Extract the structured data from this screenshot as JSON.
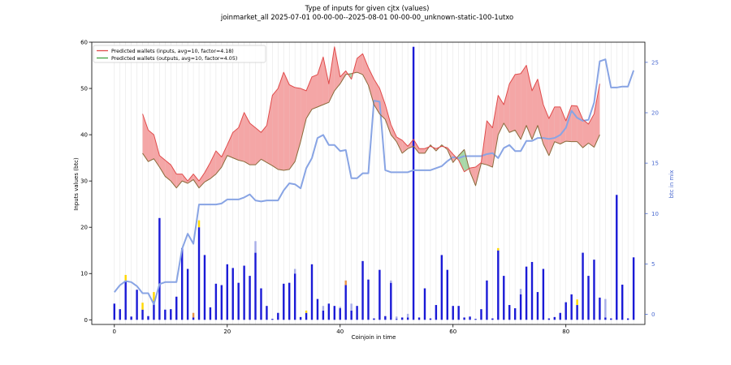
{
  "chart_data": {
    "type": "bar",
    "title": "Type of inputs for given cjtx (values)",
    "subtitle": "joinmarket_all 2025-07-01 00-00-00--2025-08-01 00-00-00_unknown-static-100-1utxo",
    "xlabel": "Coinjoin in time",
    "ylabel": "Inputs values (btc)",
    "y2label": "btc in mix",
    "xlim": [
      -4,
      94
    ],
    "ylim": [
      -1,
      60
    ],
    "y2lim": [
      -1,
      27
    ],
    "xticks": [
      0,
      20,
      40,
      60,
      80
    ],
    "yticks": [
      0,
      10,
      20,
      30,
      40,
      50,
      60
    ],
    "y2ticks": [
      0,
      5,
      10,
      15,
      20,
      25
    ],
    "grid": "vertical",
    "legend_position": "top-left",
    "legend": [
      {
        "label": "Predicted wallets (inputs, avg=10, factor=4.18)",
        "color": "#e04b4b"
      },
      {
        "label": "Predicted wallets (outputs, avg=10, factor=4.05)",
        "color": "#3fa03f"
      }
    ],
    "colors": {
      "bars": "#1a1ad6",
      "bars_light": "#a8aee8",
      "bars_yellow": "#ffd700",
      "bars_orange": "#e8954a",
      "inputs_line": "#e04b4b",
      "outputs_line": "#8a6a3a",
      "fill_red": "#f4a6a6",
      "fill_green": "#a8d8a8",
      "mix_line": "#88a4e4"
    },
    "bars": [
      {
        "x": 0,
        "value": 3.5
      },
      {
        "x": 1,
        "value": 2.3
      },
      {
        "x": 2,
        "value": 8.5,
        "cap": 1.2,
        "cap_color": "yellow"
      },
      {
        "x": 3,
        "value": 0.7
      },
      {
        "x": 4,
        "value": 6.5
      },
      {
        "x": 5,
        "value": 2.2,
        "cap": 1.5,
        "cap_color": "yellow"
      },
      {
        "x": 6,
        "value": 0.8
      },
      {
        "x": 7,
        "value": 4,
        "cap": 2,
        "cap_color": "yellow"
      },
      {
        "x": 8,
        "value": 22
      },
      {
        "x": 9,
        "value": 2.2
      },
      {
        "x": 10,
        "value": 2.3
      },
      {
        "x": 11,
        "value": 5
      },
      {
        "x": 12,
        "value": 15.5
      },
      {
        "x": 13,
        "value": 11
      },
      {
        "x": 14,
        "value": 0.5,
        "cap": 1,
        "cap_color": "orange"
      },
      {
        "x": 15,
        "value": 20,
        "cap": 1.5,
        "cap_color": "yellow"
      },
      {
        "x": 16,
        "value": 14
      },
      {
        "x": 17,
        "value": 2.7
      },
      {
        "x": 18,
        "value": 7.8
      },
      {
        "x": 19,
        "value": 7.5
      },
      {
        "x": 20,
        "value": 12
      },
      {
        "x": 21,
        "value": 11.2
      },
      {
        "x": 22,
        "value": 8
      },
      {
        "x": 23,
        "value": 11.7
      },
      {
        "x": 24,
        "value": 9.5
      },
      {
        "x": 25,
        "value": 14.5,
        "cap": 2.5,
        "cap_color": "light"
      },
      {
        "x": 26,
        "value": 6.8
      },
      {
        "x": 27,
        "value": 3
      },
      {
        "x": 28,
        "value": 0.2
      },
      {
        "x": 29,
        "value": 1.5
      },
      {
        "x": 30,
        "value": 7.8
      },
      {
        "x": 31,
        "value": 8
      },
      {
        "x": 32,
        "value": 10,
        "cap": 1,
        "cap_color": "light"
      },
      {
        "x": 33,
        "value": 0.6
      },
      {
        "x": 34,
        "value": 1.5,
        "cap": 0.5,
        "cap_color": "yellow"
      },
      {
        "x": 35,
        "value": 12
      },
      {
        "x": 36,
        "value": 4.5
      },
      {
        "x": 37,
        "value": 2,
        "cap": 1,
        "cap_color": "light"
      },
      {
        "x": 38,
        "value": 3.5
      },
      {
        "x": 39,
        "value": 3
      },
      {
        "x": 40,
        "value": 2.5,
        "cap": 0.3,
        "cap_color": "light"
      },
      {
        "x": 41,
        "value": 7.5,
        "cap": 1,
        "cap_color": "orange"
      },
      {
        "x": 42,
        "value": 2,
        "cap": 1.5,
        "cap_color": "light"
      },
      {
        "x": 43,
        "value": 3
      },
      {
        "x": 44,
        "value": 12.7
      },
      {
        "x": 45,
        "value": 8.7
      },
      {
        "x": 46,
        "value": 0.3
      },
      {
        "x": 47,
        "value": 10.8
      },
      {
        "x": 48,
        "value": 0.8
      },
      {
        "x": 49,
        "value": 8,
        "cap": 0.5,
        "cap_color": "light"
      },
      {
        "x": 50,
        "value": 0.2,
        "cap": 0.5,
        "cap_color": "light"
      },
      {
        "x": 51,
        "value": 0.5
      },
      {
        "x": 52,
        "value": 0.5,
        "cap": 0.8,
        "cap_color": "light"
      },
      {
        "x": 53,
        "value": 59
      },
      {
        "x": 54,
        "value": 0.5
      },
      {
        "x": 55,
        "value": 6.8
      },
      {
        "x": 56,
        "value": 0.3
      },
      {
        "x": 57,
        "value": 3.2
      },
      {
        "x": 58,
        "value": 14
      },
      {
        "x": 59,
        "value": 10.8
      },
      {
        "x": 60,
        "value": 3
      },
      {
        "x": 61,
        "value": 3
      },
      {
        "x": 62,
        "value": 0.5
      },
      {
        "x": 63,
        "value": 0.7
      },
      {
        "x": 64,
        "value": 0.2
      },
      {
        "x": 65,
        "value": 2.3
      },
      {
        "x": 66,
        "value": 8.5
      },
      {
        "x": 67,
        "value": 0.3
      },
      {
        "x": 68,
        "value": 15,
        "cap": 0.5,
        "cap_color": "yellow"
      },
      {
        "x": 69,
        "value": 9.5
      },
      {
        "x": 70,
        "value": 3.2
      },
      {
        "x": 71,
        "value": 2.5
      },
      {
        "x": 72,
        "value": 5.5,
        "cap": 1.2,
        "cap_color": "light"
      },
      {
        "x": 73,
        "value": 11.5
      },
      {
        "x": 74,
        "value": 12.5
      },
      {
        "x": 75,
        "value": 6
      },
      {
        "x": 76,
        "value": 11
      },
      {
        "x": 77,
        "value": 0.3
      },
      {
        "x": 78,
        "value": 0.6
      },
      {
        "x": 79,
        "value": 1.5
      },
      {
        "x": 80,
        "value": 3.8
      },
      {
        "x": 81,
        "value": 5.5
      },
      {
        "x": 82,
        "value": 3.2,
        "cap": 1.2,
        "cap_color": "yellow"
      },
      {
        "x": 83,
        "value": 14.5
      },
      {
        "x": 84,
        "value": 9.5
      },
      {
        "x": 85,
        "value": 13
      },
      {
        "x": 86,
        "value": 4.8
      },
      {
        "x": 87,
        "value": 0.5,
        "cap": 4,
        "cap_color": "light"
      },
      {
        "x": 88,
        "value": 0.3
      },
      {
        "x": 89,
        "value": 27
      },
      {
        "x": 90,
        "value": 7.6
      },
      {
        "x": 91,
        "value": 0.3
      },
      {
        "x": 92,
        "value": 13.5
      }
    ],
    "series": [
      {
        "name": "Predicted wallets (inputs, avg=10, factor=4.18)",
        "axis": "left",
        "x": [
          5,
          6,
          7,
          8,
          9,
          10,
          11,
          12,
          13,
          14,
          15,
          16,
          17,
          18,
          19,
          20,
          21,
          22,
          23,
          24,
          25,
          26,
          27,
          28,
          29,
          30,
          31,
          32,
          33,
          34,
          35,
          36,
          37,
          38,
          39,
          40,
          41,
          42,
          43,
          44,
          45,
          46,
          47,
          48,
          49,
          50,
          51,
          52,
          53,
          54,
          55,
          56,
          57,
          58,
          59,
          60,
          61,
          62,
          63,
          64,
          65,
          66,
          67,
          68,
          69,
          70,
          71,
          72,
          73,
          74,
          75,
          76,
          77,
          78,
          79,
          80,
          81,
          82,
          83,
          84,
          85,
          86
        ],
        "values": [
          44.5,
          41,
          40,
          35.5,
          34.5,
          33.5,
          31.5,
          31.5,
          30,
          31.5,
          30,
          31.8,
          34,
          36.5,
          35.2,
          37.8,
          40.5,
          41.5,
          44.8,
          42.5,
          41.5,
          40.5,
          42,
          48.5,
          50,
          53.5,
          50.8,
          50.2,
          50,
          49.5,
          52.5,
          53,
          56.8,
          51,
          59,
          52.5,
          53.8,
          52,
          56.5,
          57.5,
          54.5,
          52,
          50,
          46.5,
          42.2,
          39.5,
          38.8,
          37.5,
          39,
          37,
          37,
          37.5,
          37,
          37.5,
          37.2,
          35.8,
          34.5,
          32,
          32.8,
          33,
          34,
          43,
          41.5,
          48.5,
          46.5,
          51,
          53,
          53.2,
          55,
          49.5,
          52,
          46.5,
          43.5,
          46,
          46,
          43,
          46.3,
          46.2,
          43.3,
          42.3,
          44.5,
          51
        ]
      },
      {
        "name": "Predicted wallets (outputs, avg=10, factor=4.05)",
        "axis": "left",
        "x": [
          5,
          6,
          7,
          8,
          9,
          10,
          11,
          12,
          13,
          14,
          15,
          16,
          17,
          18,
          19,
          20,
          21,
          22,
          23,
          24,
          25,
          26,
          27,
          28,
          29,
          30,
          31,
          32,
          33,
          34,
          35,
          36,
          37,
          38,
          39,
          40,
          41,
          42,
          43,
          44,
          45,
          46,
          47,
          48,
          49,
          50,
          51,
          52,
          53,
          54,
          55,
          56,
          57,
          58,
          59,
          60,
          61,
          62,
          63,
          64,
          65,
          66,
          67,
          68,
          69,
          70,
          71,
          72,
          73,
          74,
          75,
          76,
          77,
          78,
          79,
          80,
          81,
          82,
          83,
          84,
          85,
          86
        ],
        "values": [
          36,
          34.2,
          34.8,
          33,
          31,
          30,
          28.5,
          30,
          29.5,
          30.3,
          28.5,
          29.8,
          30.5,
          31.5,
          33,
          35.5,
          35,
          34.5,
          34.2,
          33.5,
          33.5,
          34.7,
          34,
          33.3,
          32.5,
          32.3,
          32.5,
          34.2,
          38.5,
          43.5,
          45.5,
          46,
          46.5,
          47,
          49.5,
          51,
          53,
          53.2,
          53.5,
          53,
          50.7,
          46.5,
          44.5,
          43.3,
          40,
          38.5,
          36,
          37,
          37.5,
          36,
          36,
          37.8,
          36.5,
          37.8,
          36.8,
          34,
          35.5,
          36.8,
          32,
          29,
          33.8,
          33.5,
          33,
          40,
          42.5,
          40.5,
          41,
          39,
          42,
          39,
          42,
          38,
          35.5,
          38.5,
          38,
          38.6,
          38.5,
          38.5,
          37.2,
          38.2,
          37.3,
          40
        ]
      },
      {
        "name": "btc in mix",
        "axis": "right",
        "x": [
          0,
          1,
          2,
          3,
          4,
          5,
          6,
          7,
          8,
          9,
          10,
          11,
          12,
          13,
          14,
          15,
          16,
          17,
          18,
          19,
          20,
          21,
          22,
          23,
          24,
          25,
          26,
          27,
          28,
          29,
          30,
          31,
          32,
          33,
          34,
          35,
          36,
          37,
          38,
          39,
          40,
          41,
          42,
          43,
          44,
          45,
          46,
          47,
          48,
          49,
          50,
          51,
          52,
          53,
          54,
          55,
          56,
          57,
          58,
          59,
          60,
          61,
          62,
          63,
          64,
          65,
          66,
          67,
          68,
          69,
          70,
          71,
          72,
          73,
          74,
          75,
          76,
          77,
          78,
          79,
          80,
          81,
          82,
          83,
          84,
          85,
          86,
          87,
          88,
          89,
          90,
          91,
          92
        ],
        "values": [
          2.2,
          2.9,
          3.3,
          3.2,
          2.8,
          2.1,
          2.1,
          1,
          3,
          3.2,
          3.2,
          3.2,
          6.5,
          8,
          7,
          10.9,
          10.9,
          10.9,
          10.9,
          11,
          11.4,
          11.4,
          11.4,
          11.6,
          11.9,
          11.3,
          11.2,
          11.3,
          11.3,
          11.3,
          12.3,
          13,
          12.9,
          12.5,
          14.5,
          15.5,
          17.5,
          17.8,
          16.8,
          16.8,
          16.2,
          16.3,
          13.5,
          13.5,
          14,
          14,
          21.2,
          21.1,
          14.3,
          14.1,
          14.1,
          14.1,
          14.1,
          14.3,
          14.3,
          14.3,
          14.3,
          14.5,
          14.7,
          15.2,
          15.6,
          15.5,
          15.7,
          15.7,
          15.7,
          15.7,
          15.9,
          16,
          15.5,
          16.5,
          16.8,
          16.2,
          16.2,
          17.2,
          17.2,
          17.5,
          17.5,
          17.4,
          17.5,
          17.8,
          18.5,
          20.2,
          19.5,
          19.2,
          19.3,
          21,
          25.1,
          25.3,
          22.5,
          22.5,
          22.6,
          22.6,
          24.2
        ]
      }
    ]
  }
}
